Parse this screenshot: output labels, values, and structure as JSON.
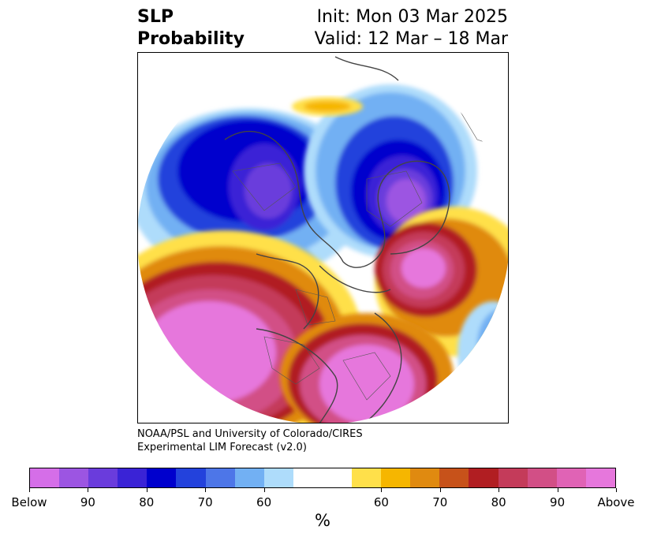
{
  "header": {
    "title_line1": "SLP",
    "title_line2": "Probability",
    "init_text": "Init: Mon 03 Mar 2025",
    "valid_text": "Valid: 12 Mar – 18 Mar"
  },
  "credit": {
    "line1": "NOAA/PSL and University of Colorado/CIRES",
    "line2": "Experimental LIM Forecast (v2.0)"
  },
  "colorbar": {
    "colors": [
      "#d56ee8",
      "#9c55e2",
      "#6a3cdc",
      "#3a23d6",
      "#0000cd",
      "#2342dc",
      "#4d76e8",
      "#72b0f3",
      "#aedcfb",
      "#ffffff",
      "#ffffff",
      "#ffe04a",
      "#f6b600",
      "#e08a10",
      "#c7521a",
      "#b11e22",
      "#c43b5a",
      "#d24f86",
      "#e063b5",
      "#e677dc"
    ],
    "ticks": [
      "Below",
      "90",
      "80",
      "70",
      "60",
      "60",
      "70",
      "80",
      "90",
      "Above"
    ],
    "unit": "%"
  },
  "map": {
    "land_color": "#ffffff",
    "border_color": "#444444"
  }
}
